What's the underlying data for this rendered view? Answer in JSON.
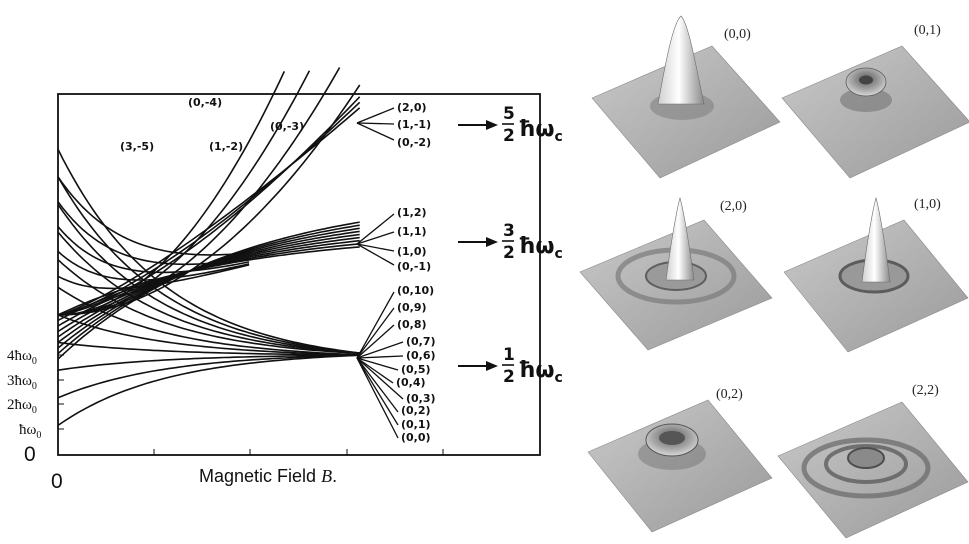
{
  "figure": {
    "panel_labels": [
      "(0,0)",
      "(0,1)",
      "(2,0)",
      "(1,0)",
      "(0,2)",
      "(2,2)"
    ]
  },
  "chart_data": {
    "type": "line",
    "title": "",
    "xlabel_main": "Magnetic Field ",
    "xlabel_var": "B",
    "xlabel_tail": ".",
    "x_tick": "0",
    "y_zero": "0",
    "y_tick_labels": [
      {
        "coef": "4",
        "sub": "0"
      },
      {
        "coef": "3",
        "sub": "0"
      },
      {
        "coef": "2",
        "sub": "0"
      },
      {
        "coef": "",
        "sub": "0"
      }
    ],
    "y_tick_values": [
      4,
      3,
      2,
      1
    ],
    "x_range": [
      0,
      5
    ],
    "y_range": [
      0,
      13
    ],
    "levels": [
      {
        "num": "5",
        "den": "2",
        "unit": "ħω",
        "sub": "c",
        "labels": [
          "(2,0)",
          "(1,-1)",
          "(0,-2)"
        ]
      },
      {
        "num": "3",
        "den": "2",
        "unit": "ħω",
        "sub": "c",
        "labels": [
          "(1,2)",
          "(1,1)",
          "(1,0)",
          "(0,-1)"
        ]
      },
      {
        "num": "1",
        "den": "2",
        "unit": "ħω",
        "sub": "c",
        "labels": [
          "(0,10)",
          "(0,9)",
          "(0,8)",
          "(0,7)",
          "(0,6)",
          "(0,5)",
          "(0,4)",
          "(0,3)",
          "(0,2)",
          "(0,1)",
          "(0,0)"
        ]
      }
    ],
    "diverging_labels": [
      "(0,-4)",
      "(3,-5)",
      "(1,-2)",
      "(0,-3)"
    ],
    "diverging_curves": [
      {
        "name": "(3,-5)"
      },
      {
        "name": "(0,-4)"
      },
      {
        "name": "(1,-2)"
      },
      {
        "name": "(0,-3)"
      }
    ],
    "fan_n1_series": 9,
    "fan_n0_series": 11,
    "colors": {
      "line": "#111111",
      "axis": "#111111",
      "surface": "#b8b8b8"
    }
  }
}
